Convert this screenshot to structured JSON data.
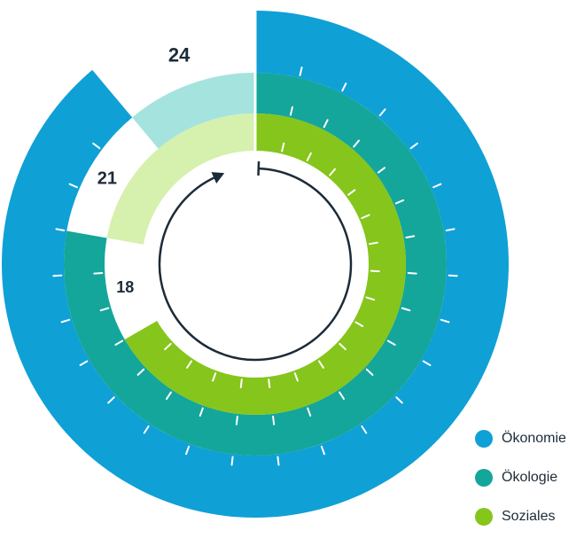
{
  "chart_data": {
    "type": "radial-bar",
    "max": 24,
    "direction": "clockwise",
    "series": [
      {
        "name": "Ökonomie",
        "value": 24,
        "color": "#0fa0d6",
        "remaining_color": "#a3d7ef"
      },
      {
        "name": "Ökologie",
        "value": 21,
        "color": "#14a69b",
        "remaining_color": "#a5e3df"
      },
      {
        "name": "Soziales",
        "value": 18,
        "color": "#86c51c",
        "remaining_color": "#d6f0ad"
      }
    ],
    "data_labels": [
      "24",
      "21",
      "18"
    ],
    "legend_position": "bottom-right"
  }
}
